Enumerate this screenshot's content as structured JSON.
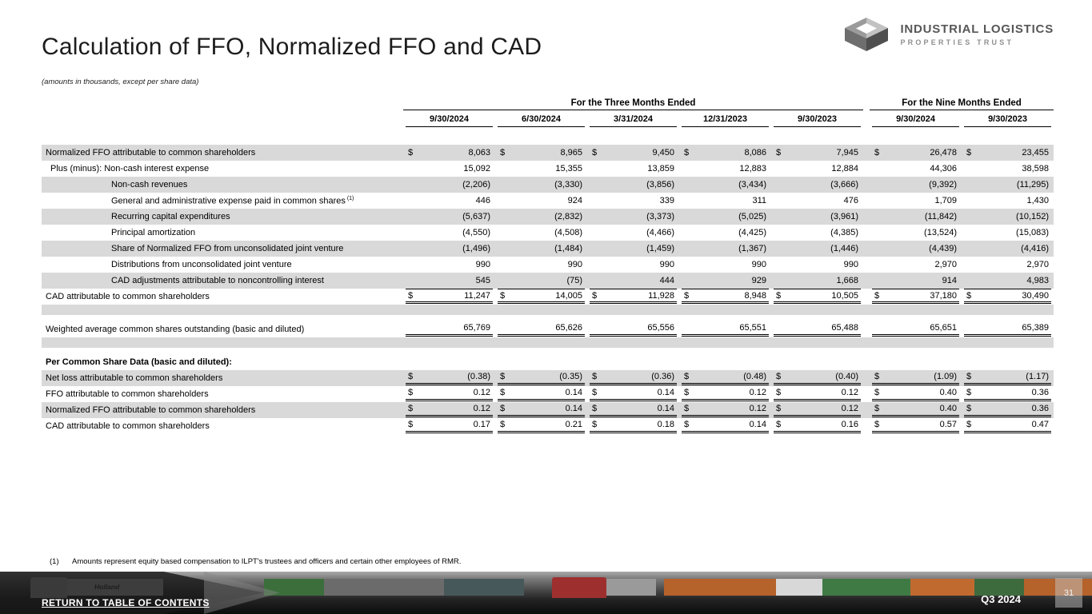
{
  "logo": {
    "line1": "INDUSTRIAL LOGISTICS",
    "line2": "PROPERTIES TRUST"
  },
  "header": {
    "title": "Calculation of FFO, Normalized FFO and CAD",
    "subtitle": "(amounts in thousands, except per share data)"
  },
  "table": {
    "group_headers": [
      {
        "label": "For the Three Months Ended",
        "span": 5
      },
      {
        "label": "For the Nine Months Ended",
        "span": 2
      }
    ],
    "columns": [
      "9/30/2024",
      "6/30/2024",
      "3/31/2024",
      "12/31/2023",
      "9/30/2023",
      "9/30/2024",
      "9/30/2023"
    ],
    "shade_color": "#d9d9d9",
    "rows": [
      {
        "label": "Normalized FFO attributable to common shareholders",
        "indent": 0,
        "dollar": true,
        "shaded": true,
        "values": [
          "8,063",
          "8,965",
          "9,450",
          "8,086",
          "7,945",
          "26,478",
          "23,455"
        ]
      },
      {
        "label": "Plus (minus): Non-cash interest expense",
        "indent": 1,
        "dollar": false,
        "shaded": false,
        "values": [
          "15,092",
          "15,355",
          "13,859",
          "12,883",
          "12,884",
          "44,306",
          "38,598"
        ]
      },
      {
        "label": "Non-cash revenues",
        "indent": 2,
        "dollar": false,
        "shaded": true,
        "values": [
          "(2,206)",
          "(3,330)",
          "(3,856)",
          "(3,434)",
          "(3,666)",
          "(9,392)",
          "(11,295)"
        ]
      },
      {
        "label": "General and administrative expense paid in common shares",
        "sup": "(1)",
        "indent": 2,
        "dollar": false,
        "shaded": false,
        "values": [
          "446",
          "924",
          "339",
          "311",
          "476",
          "1,709",
          "1,430"
        ]
      },
      {
        "label": "Recurring capital expenditures",
        "indent": 2,
        "dollar": false,
        "shaded": true,
        "values": [
          "(5,637)",
          "(2,832)",
          "(3,373)",
          "(5,025)",
          "(3,961)",
          "(11,842)",
          "(10,152)"
        ]
      },
      {
        "label": "Principal amortization",
        "indent": 2,
        "dollar": false,
        "shaded": false,
        "values": [
          "(4,550)",
          "(4,508)",
          "(4,466)",
          "(4,425)",
          "(4,385)",
          "(13,524)",
          "(15,083)"
        ]
      },
      {
        "label": "Share of Normalized FFO from unconsolidated joint venture",
        "indent": 2,
        "dollar": false,
        "shaded": true,
        "values": [
          "(1,496)",
          "(1,484)",
          "(1,459)",
          "(1,367)",
          "(1,446)",
          "(4,439)",
          "(4,416)"
        ]
      },
      {
        "label": "Distributions from unconsolidated joint venture",
        "indent": 2,
        "dollar": false,
        "shaded": false,
        "values": [
          "990",
          "990",
          "990",
          "990",
          "990",
          "2,970",
          "2,970"
        ]
      },
      {
        "label": "CAD adjustments attributable to noncontrolling interest",
        "indent": 2,
        "dollar": false,
        "shaded": true,
        "values": [
          "545",
          "(75)",
          "444",
          "929",
          "1,668",
          "914",
          "4,983"
        ]
      },
      {
        "label": "CAD attributable to common shareholders",
        "indent": 0,
        "dollar": true,
        "shaded": false,
        "line_top": true,
        "line_bottom": "double",
        "values": [
          "11,247",
          "14,005",
          "11,928",
          "8,948",
          "10,505",
          "37,180",
          "30,490"
        ]
      },
      {
        "spacer": true
      },
      {
        "label": "Weighted average common shares outstanding (basic and diluted)",
        "indent": 0,
        "dollar": false,
        "shaded": false,
        "line_bottom": "double",
        "values": [
          "65,769",
          "65,626",
          "65,556",
          "65,551",
          "65,488",
          "65,651",
          "65,389"
        ]
      },
      {
        "spacer": true
      },
      {
        "label": "Per Common Share Data (basic and diluted):",
        "indent": 0,
        "bold": true,
        "shaded": false,
        "values": null
      },
      {
        "label": "Net loss attributable to common shareholders",
        "indent": 0,
        "dollar": true,
        "shaded": true,
        "line_bottom": "double",
        "values": [
          "(0.38)",
          "(0.35)",
          "(0.36)",
          "(0.48)",
          "(0.40)",
          "(1.09)",
          "(1.17)"
        ]
      },
      {
        "label": "FFO attributable to common shareholders",
        "indent": 0,
        "dollar": true,
        "shaded": false,
        "line_bottom": "double",
        "values": [
          "0.12",
          "0.14",
          "0.14",
          "0.12",
          "0.12",
          "0.40",
          "0.36"
        ]
      },
      {
        "label": "Normalized FFO attributable to common shareholders",
        "indent": 0,
        "dollar": true,
        "shaded": true,
        "line_bottom": "double",
        "values": [
          "0.12",
          "0.14",
          "0.14",
          "0.12",
          "0.12",
          "0.40",
          "0.36"
        ]
      },
      {
        "label": "CAD attributable to common shareholders",
        "indent": 0,
        "dollar": true,
        "shaded": false,
        "line_bottom": "double",
        "values": [
          "0.17",
          "0.21",
          "0.18",
          "0.14",
          "0.16",
          "0.57",
          "0.47"
        ]
      }
    ]
  },
  "footnote": {
    "marker": "(1)",
    "text": "Amounts represent equity based compensation to ILPT's trustees and officers and certain other employees of RMR."
  },
  "footer": {
    "return_link": "RETURN TO TABLE OF CONTENTS",
    "quarter": "Q3 2024",
    "page": "31",
    "photo": {
      "truck_brand": "Holland"
    }
  }
}
